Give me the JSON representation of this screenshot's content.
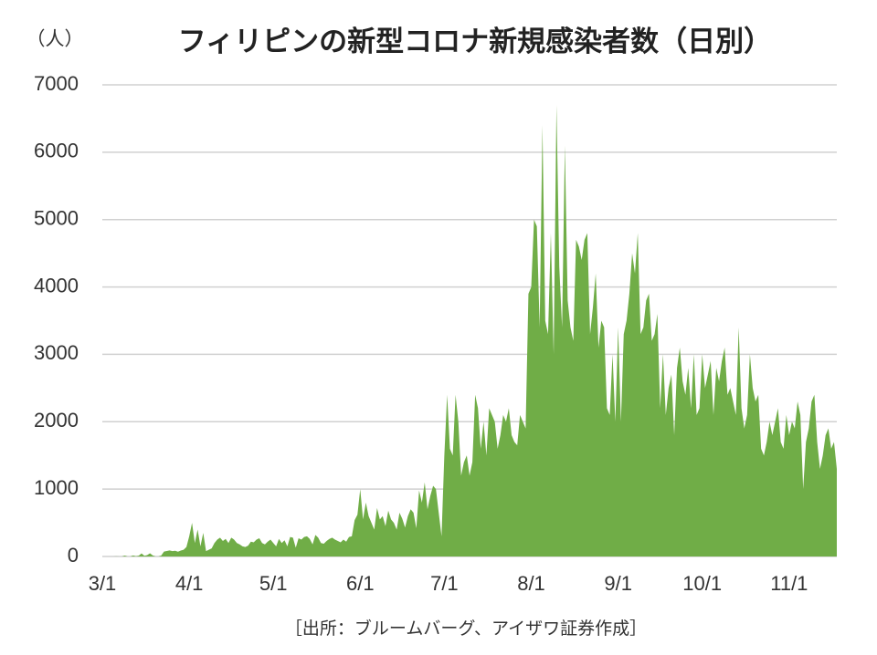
{
  "chart_data": {
    "type": "area",
    "title": "フィリピンの新型コロナ新規感染者数（日別）",
    "y_label": "（人）",
    "source": "［出所：ブルームバーグ、アイザワ証券作成］",
    "color": "#70ad47",
    "grid": true,
    "ylim": [
      0,
      7000
    ],
    "yticks": [
      0,
      1000,
      2000,
      3000,
      4000,
      5000,
      6000,
      7000
    ],
    "categories": [
      "3/1",
      null,
      null,
      null,
      null,
      null,
      null,
      null,
      null,
      null,
      null,
      null,
      null,
      null,
      null,
      null,
      null,
      null,
      null,
      null,
      null,
      null,
      null,
      null,
      null,
      null,
      null,
      null,
      null,
      null,
      null,
      "4/1",
      null,
      null,
      null,
      null,
      null,
      null,
      null,
      null,
      null,
      null,
      null,
      null,
      null,
      null,
      null,
      null,
      null,
      null,
      null,
      null,
      null,
      null,
      null,
      null,
      null,
      null,
      null,
      null,
      null,
      "5/1",
      null,
      null,
      null,
      null,
      null,
      null,
      null,
      null,
      null,
      null,
      null,
      null,
      null,
      null,
      null,
      null,
      null,
      null,
      null,
      null,
      null,
      null,
      null,
      null,
      null,
      null,
      null,
      null,
      null,
      null,
      "6/1",
      null,
      null,
      null,
      null,
      null,
      null,
      null,
      null,
      null,
      null,
      null,
      null,
      null,
      null,
      null,
      null,
      null,
      null,
      null,
      null,
      null,
      null,
      null,
      null,
      null,
      null,
      null,
      null,
      null,
      "7/1",
      null,
      null,
      null,
      null,
      null,
      null,
      null,
      null,
      null,
      null,
      null,
      null,
      null,
      null,
      null,
      null,
      null,
      null,
      null,
      null,
      null,
      null,
      null,
      null,
      null,
      null,
      null,
      null,
      null,
      null,
      "8/1",
      null,
      null,
      null,
      null,
      null,
      null,
      null,
      null,
      null,
      null,
      null,
      null,
      null,
      null,
      null,
      null,
      null,
      null,
      null,
      null,
      null,
      null,
      null,
      null,
      null,
      null,
      null,
      null,
      null,
      null,
      "9/1",
      null,
      null,
      null,
      null,
      null,
      null,
      null,
      null,
      null,
      null,
      null,
      null,
      null,
      null,
      null,
      null,
      null,
      null,
      null,
      null,
      null,
      null,
      null,
      null,
      null,
      null,
      null,
      null,
      null,
      "10/1",
      null,
      null,
      null,
      null,
      null,
      null,
      null,
      null,
      null,
      null,
      null,
      null,
      null,
      null,
      null,
      null,
      null,
      null,
      null,
      null,
      null,
      null,
      null,
      null,
      null,
      null,
      null,
      null,
      null,
      null,
      "11/1",
      null,
      null,
      null,
      null,
      null,
      null,
      null,
      null,
      null,
      null,
      null,
      null,
      null,
      null,
      null,
      null,
      null
    ],
    "values": [
      0,
      0,
      0,
      0,
      0,
      2,
      0,
      0,
      14,
      0,
      0,
      16,
      3,
      12,
      46,
      10,
      20,
      47,
      15,
      0,
      0,
      13,
      73,
      82,
      90,
      80,
      84,
      71,
      88,
      100,
      140,
      300,
      500,
      200,
      400,
      150,
      350,
      80,
      100,
      120,
      200,
      250,
      280,
      230,
      260,
      200,
      280,
      250,
      200,
      180,
      150,
      140,
      160,
      220,
      210,
      250,
      270,
      200,
      180,
      220,
      250,
      200,
      150,
      260,
      200,
      240,
      150,
      290,
      280,
      130,
      270,
      250,
      290,
      300,
      260,
      180,
      320,
      280,
      200,
      190,
      230,
      260,
      280,
      250,
      230,
      210,
      250,
      220,
      290,
      300,
      540,
      620,
      1000,
      550,
      800,
      600,
      500,
      400,
      720,
      550,
      600,
      450,
      680,
      550,
      500,
      400,
      650,
      560,
      430,
      600,
      700,
      650,
      420,
      980,
      800,
      1100,
      700,
      900,
      1050,
      1000,
      650,
      300,
      1500,
      2400,
      1600,
      1500,
      2400,
      2000,
      1200,
      1400,
      1500,
      1200,
      1400,
      2400,
      2200,
      1600,
      2000,
      1500,
      2200,
      2100,
      2000,
      1600,
      1800,
      2100,
      2000,
      2200,
      1800,
      1700,
      1650,
      2100,
      2000,
      1900,
      3900,
      4000,
      5000,
      4900,
      3400,
      6400,
      3500,
      3300,
      4800,
      3000,
      6700,
      4300,
      3400,
      6100,
      3800,
      3400,
      3200,
      4700,
      4600,
      4400,
      4700,
      4800,
      3300,
      3700,
      4200,
      3100,
      3500,
      3400,
      2200,
      2100,
      3000,
      2000,
      3400,
      2000,
      3300,
      3500,
      3900,
      4500,
      4200,
      4800,
      3300,
      3400,
      3800,
      3900,
      3200,
      3300,
      3600,
      2200,
      3000,
      2100,
      2500,
      2700,
      1800,
      2800,
      3100,
      2600,
      2400,
      2800,
      2200,
      3000,
      2100,
      2200,
      3000,
      2500,
      2700,
      2900,
      2100,
      2800,
      2600,
      2900,
      3100,
      2400,
      2500,
      2300,
      2100,
      3400,
      2200,
      1900,
      2100,
      3000,
      2500,
      2300,
      2400,
      1600,
      1500,
      1700,
      2000,
      1800,
      2000,
      2200,
      1700,
      1600,
      2100,
      1800,
      2000,
      1900,
      2300,
      2100,
      1000,
      1700,
      1900,
      2300,
      2400,
      1700,
      1300,
      1500,
      1800,
      1900,
      1600,
      1700,
      1300
    ]
  }
}
